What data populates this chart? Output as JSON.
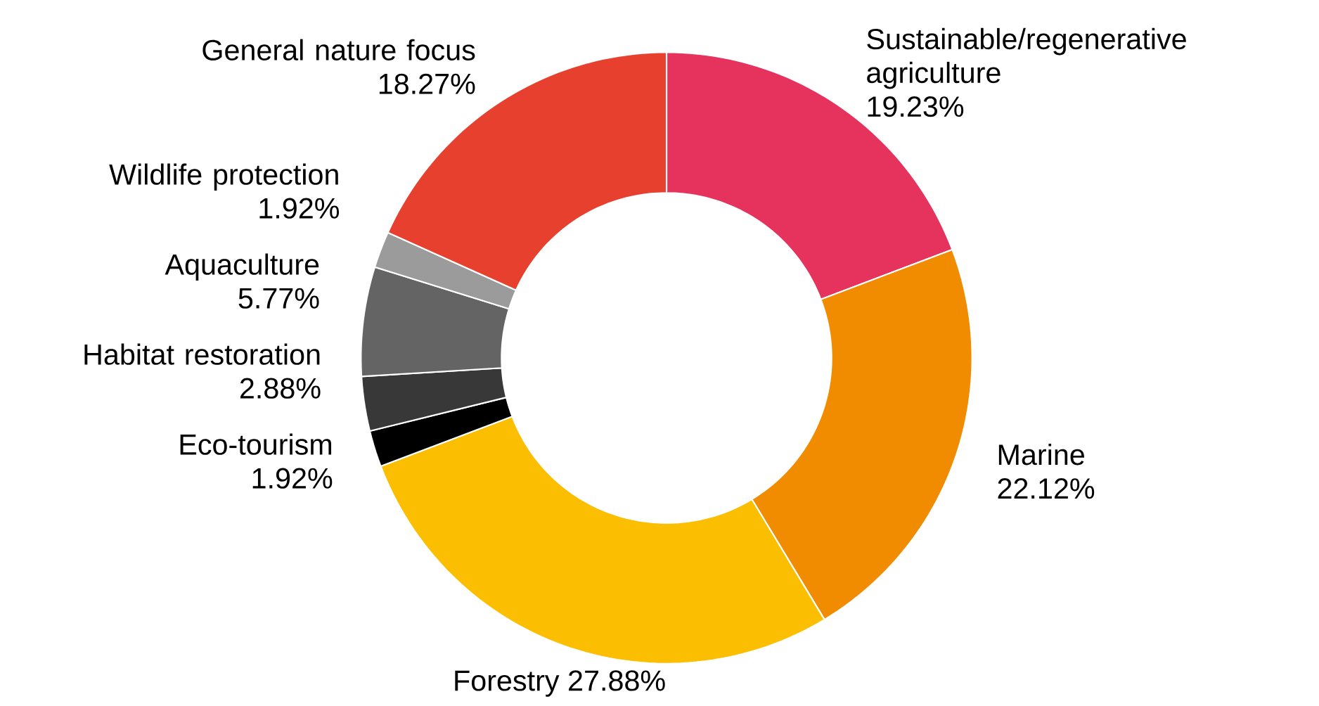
{
  "chart_data": {
    "type": "donut",
    "categories": [
      "Sustainable/regenerative agriculture",
      "Marine",
      "Forestry",
      "Eco-tourism",
      "Habitat restoration",
      "Aquaculture",
      "Wildlife protection",
      "General nature focus"
    ],
    "values": [
      19.23,
      22.12,
      27.88,
      1.92,
      2.88,
      5.77,
      1.92,
      18.27
    ],
    "value_labels": [
      "19.23%",
      "22.12%",
      "27.88%",
      "1.92%",
      "2.88%",
      "5.77%",
      "1.92%",
      "18.27%"
    ],
    "colors": [
      "#e6335e",
      "#f18c00",
      "#fbbe00",
      "#000000",
      "#383838",
      "#646464",
      "#9b9b9b",
      "#e8402f"
    ]
  }
}
